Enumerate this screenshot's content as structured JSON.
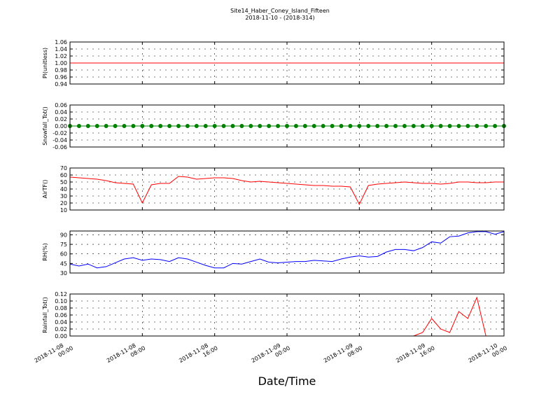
{
  "title": "Site14_Haber_Coney_Island_Fifteen",
  "subtitle": "2018-11-10 - (2018-314)",
  "xlabel": "Date/Time",
  "xlim": [
    "2018-11-08 00:00",
    "2018-11-10 00:00"
  ],
  "xticks": [
    "2018-11-08 00:00",
    "2018-11-08 08:00",
    "2018-11-08 16:00",
    "2018-11-09 00:00",
    "2018-11-09 08:00",
    "2018-11-09 16:00",
    "2018-11-10 00:00"
  ],
  "x": [
    "2018-11-08 00:00",
    "2018-11-08 01:00",
    "2018-11-08 02:00",
    "2018-11-08 03:00",
    "2018-11-08 04:00",
    "2018-11-08 05:00",
    "2018-11-08 06:00",
    "2018-11-08 07:00",
    "2018-11-08 08:00",
    "2018-11-08 09:00",
    "2018-11-08 10:00",
    "2018-11-08 11:00",
    "2018-11-08 12:00",
    "2018-11-08 13:00",
    "2018-11-08 14:00",
    "2018-11-08 15:00",
    "2018-11-08 16:00",
    "2018-11-08 17:00",
    "2018-11-08 18:00",
    "2018-11-08 19:00",
    "2018-11-08 20:00",
    "2018-11-08 21:00",
    "2018-11-08 22:00",
    "2018-11-08 23:00",
    "2018-11-09 00:00",
    "2018-11-09 01:00",
    "2018-11-09 02:00",
    "2018-11-09 03:00",
    "2018-11-09 04:00",
    "2018-11-09 05:00",
    "2018-11-09 06:00",
    "2018-11-09 07:00",
    "2018-11-09 08:00",
    "2018-11-09 09:00",
    "2018-11-09 10:00",
    "2018-11-09 11:00",
    "2018-11-09 12:00",
    "2018-11-09 13:00",
    "2018-11-09 14:00",
    "2018-11-09 15:00",
    "2018-11-09 16:00",
    "2018-11-09 17:00",
    "2018-11-09 18:00",
    "2018-11-09 19:00",
    "2018-11-09 20:00",
    "2018-11-09 21:00",
    "2018-11-09 22:00",
    "2018-11-09 23:00",
    "2018-11-10 00:00"
  ],
  "chart_data": [
    {
      "type": "line",
      "ylabel": "Pl(unitless)",
      "ylim": [
        0.94,
        1.06
      ],
      "grid": true,
      "yticks": [
        0.94,
        0.96,
        0.98,
        {
          "value": 1,
          "label": "1.00"
        },
        1.02,
        1.04,
        1.06
      ],
      "series": [
        {
          "color": "#ff0000",
          "values": [
            1,
            1,
            1,
            1,
            1,
            1,
            1,
            1,
            1,
            1,
            1,
            1,
            1,
            1,
            1,
            1,
            1,
            1,
            1,
            1,
            1,
            1,
            1,
            1,
            1,
            1,
            1,
            1,
            1,
            1,
            1,
            1,
            1,
            1,
            1,
            1,
            1,
            1,
            1,
            1,
            1,
            1,
            1,
            1,
            1,
            1,
            1,
            1,
            1
          ]
        }
      ]
    },
    {
      "type": "line",
      "ylabel": "Snowfall_Tot()",
      "ylim": [
        -0.06,
        0.06
      ],
      "grid": true,
      "yticks": [
        -0.06,
        -0.04,
        -0.02,
        {
          "value": 0,
          "label": "0.00"
        },
        0.02,
        0.04,
        0.06
      ],
      "series": [
        {
          "color": "#008000",
          "marker": "o",
          "values": [
            0,
            0,
            0,
            0,
            0,
            0,
            0,
            0,
            0,
            0,
            0,
            0,
            0,
            0,
            0,
            0,
            0,
            0,
            0,
            0,
            0,
            0,
            0,
            0,
            0,
            0,
            0,
            0,
            0,
            0,
            0,
            0,
            0,
            0,
            0,
            0,
            0,
            0,
            0,
            0,
            0,
            0,
            0,
            0,
            0,
            0,
            0,
            0,
            0
          ]
        }
      ]
    },
    {
      "type": "line",
      "ylabel": "AirTF()",
      "ylim": [
        10,
        70
      ],
      "grid": true,
      "yticks": [
        10,
        20,
        30,
        40,
        50,
        60,
        70
      ],
      "series": [
        {
          "color": "#ff0000",
          "values": [
            57,
            56,
            55,
            54,
            52,
            49,
            48,
            47,
            20,
            46,
            48,
            48,
            58,
            57,
            54,
            55,
            56,
            56,
            55,
            52,
            50,
            51,
            50,
            49,
            48,
            47,
            46,
            45,
            45,
            44,
            44,
            43,
            18,
            45,
            47,
            48,
            49,
            50,
            49,
            48,
            48,
            47,
            48,
            50,
            50,
            49,
            49,
            50,
            50
          ]
        }
      ]
    },
    {
      "type": "line",
      "ylabel": "RH(%)",
      "ylim": [
        30,
        96
      ],
      "grid": true,
      "yticks": [
        30,
        45,
        60,
        75,
        90
      ],
      "series": [
        {
          "color": "#0000ff",
          "values": [
            44,
            41,
            44,
            38,
            40,
            46,
            52,
            54,
            50,
            52,
            51,
            48,
            54,
            52,
            47,
            42,
            38,
            38,
            45,
            44,
            48,
            52,
            47,
            46,
            47,
            48,
            48,
            50,
            49,
            48,
            52,
            55,
            57,
            55,
            56,
            63,
            67,
            67,
            65,
            70,
            79,
            77,
            87,
            88,
            93,
            95,
            95,
            91,
            95
          ]
        }
      ]
    },
    {
      "type": "line",
      "ylabel": "Rainfall_Tot()",
      "ylim": [
        0,
        0.12
      ],
      "grid": true,
      "yticks": [
        {
          "value": 0,
          "label": "0.00"
        },
        0.02,
        0.04,
        0.06,
        0.08,
        {
          "value": 0.1,
          "label": "0.10"
        },
        0.12
      ],
      "series": [
        {
          "color": "#ff0000",
          "values": [
            0,
            0,
            0,
            0,
            0,
            0,
            0,
            0,
            0,
            0,
            0,
            0,
            0,
            0,
            0,
            0,
            0,
            0,
            0,
            0,
            0,
            0,
            0,
            0,
            0,
            0,
            0,
            0,
            0,
            0,
            0,
            0,
            0,
            0,
            0,
            0,
            0,
            0,
            0,
            0.01,
            0.05,
            0.02,
            0.01,
            0.07,
            0.05,
            0.11,
            0,
            0,
            0
          ]
        }
      ]
    }
  ]
}
